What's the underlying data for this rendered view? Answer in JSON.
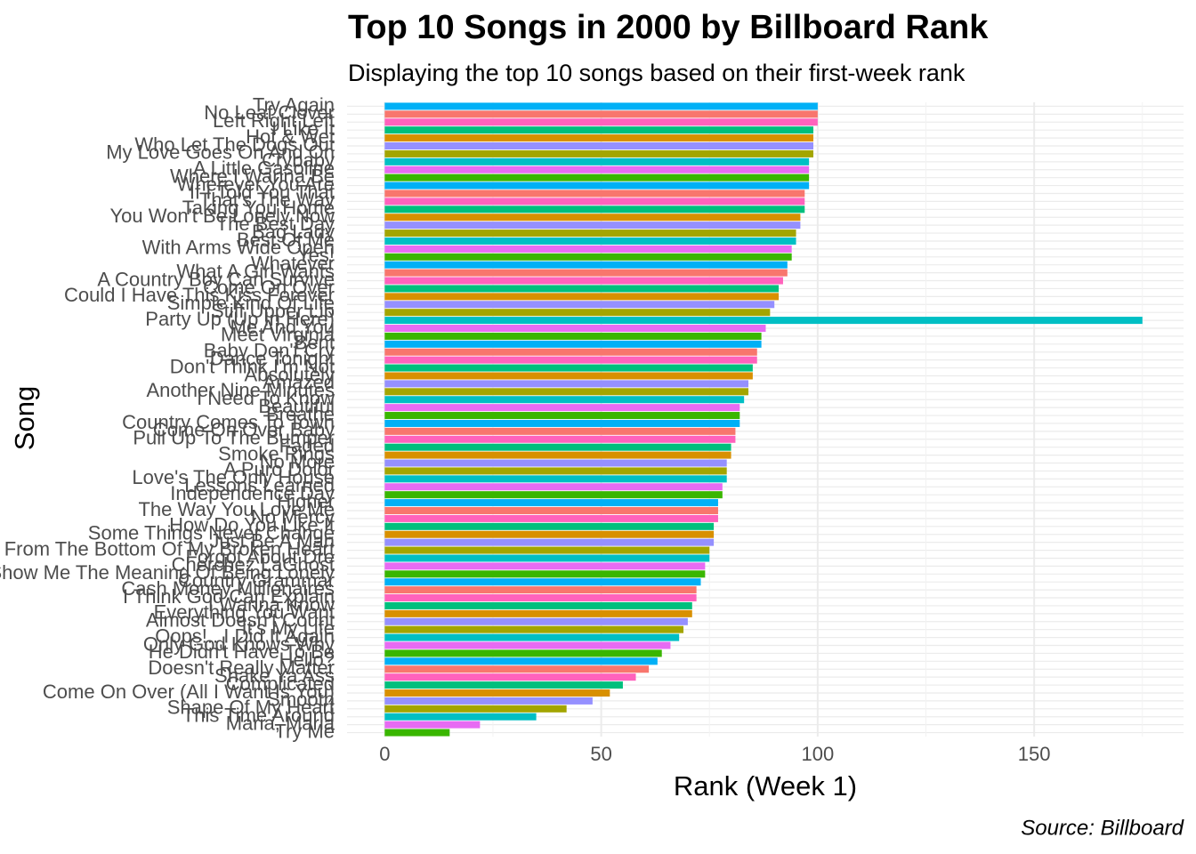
{
  "chart_data": {
    "type": "bar",
    "orientation": "horizontal",
    "title": "Top 10 Songs in 2000 by Billboard Rank",
    "subtitle": "Displaying the top 10 songs based on their first-week rank",
    "x_label": "Rank (Week 1)",
    "y_label": "Song",
    "caption": "Source: Billboard",
    "categories": [
      "Try Again",
      "No Leaf Clover",
      "Left Right Left",
      "I Like It",
      "Hot & Wet",
      "Who Let The Dogs Out",
      "My Love Goes On And On",
      "Crybaby",
      "A Little Gasoline",
      "Where I Wanna Be",
      "Wherever You Are",
      "If I Told You That",
      "That's The Way",
      "Taking You Home",
      "You Won't Be Lonely Now",
      "The Best Day",
      "Bag Lady",
      "Best Of Me",
      "With Arms Wide Open",
      "Yes!",
      "Whatever",
      "What A Girl Wants",
      "A Country Boy Can Survive",
      "Come On Over",
      "Could I Have This Kiss Forever",
      "Simple Kind Of Life",
      "Stiff Upper Lip",
      "Party Up (Up In Here)",
      "Me And You",
      "Meet Virginia",
      "Bent",
      "Baby Don't Cry",
      "Dance Tonight",
      "Don't Think I'm Not",
      "Absolutely",
      "Amazed",
      "Another Nine Minutes",
      "I Need To Know",
      "Beautiful",
      "Breathe",
      "Country Comes To Town",
      "Come On Over Baby",
      "Pull Up To The Bumper",
      "Faded",
      "Smoke Rings",
      "No More",
      "A Puro Dolor",
      "Love's The Only House",
      "Lessons Learned",
      "Independence Day",
      "Higher",
      "The Way You Love Me",
      "No Mercy",
      "How Do You Like It",
      "Some Things Never Change",
      "Just Be A Man",
      "From The Bottom Of My Broken Heart",
      "Forgot About Dre",
      "Cherchez LaGhost",
      "Show Me The Meaning Of Being Lonely",
      "Country Grammar",
      "Cash Money Millionaires",
      "I Think God Can Explain",
      "I Wanna Know",
      "Everything You Want",
      "Almost Doesn't Count",
      "It's My Life",
      "Oops!.. I Did It Again",
      "Only God Knows Why",
      "He Didn't Have To Be",
      "Hello?",
      "Doesn't Really Matter",
      "Shake Ya Ass",
      "Complicated",
      "Come On Over (All I Want Is You)",
      "Smooth",
      "Shape Of My Heart",
      "This Time Around",
      "Maria, Maria",
      "Try Me"
    ],
    "values": [
      100,
      100,
      100,
      99,
      99,
      99,
      99,
      98,
      98,
      98,
      98,
      97,
      97,
      97,
      96,
      96,
      95,
      95,
      94,
      94,
      93,
      93,
      92,
      91,
      91,
      90,
      89,
      175,
      88,
      87,
      87,
      86,
      86,
      85,
      85,
      84,
      84,
      83,
      82,
      82,
      82,
      81,
      81,
      80,
      80,
      79,
      79,
      79,
      78,
      78,
      77,
      77,
      77,
      76,
      76,
      76,
      75,
      75,
      74,
      74,
      73,
      72,
      72,
      71,
      71,
      70,
      69,
      68,
      66,
      64,
      63,
      61,
      58,
      55,
      52,
      48,
      42,
      35,
      22,
      15
    ],
    "colors": [
      "#00B0F6",
      "#F8766D",
      "#FF62BC",
      "#00BF7D",
      "#D89000",
      "#9590FF",
      "#A3A500",
      "#00BFC4",
      "#E76BF3",
      "#39B600"
    ],
    "xlim": [
      -8.7,
      184.5
    ],
    "xticks": [
      0,
      50,
      100,
      150
    ],
    "xminor": [
      25,
      75,
      125,
      175
    ],
    "grid": true
  }
}
